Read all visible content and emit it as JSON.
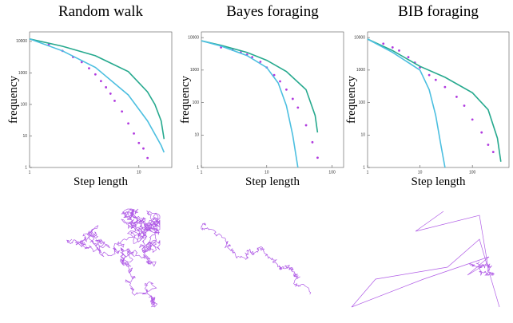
{
  "chart_data": [
    {
      "type": "loglog",
      "title": "Random walk",
      "xlabel": "Step length",
      "ylabel": "frequency",
      "xlim": [
        1,
        20
      ],
      "ylim": [
        1,
        20000
      ],
      "xticks": [
        1,
        10
      ],
      "yticks": [
        1,
        10,
        100,
        1000,
        10000
      ],
      "series": [
        {
          "mode": "points",
          "color": "#b03adf",
          "x": [
            1.5,
            2,
            2.5,
            3,
            3.5,
            4,
            4.5,
            5,
            5.5,
            6,
            7,
            8,
            9,
            10,
            11,
            12
          ],
          "values": [
            8000,
            5000,
            3200,
            2200,
            1400,
            900,
            550,
            350,
            220,
            130,
            60,
            25,
            12,
            6,
            4,
            2
          ]
        },
        {
          "mode": "line",
          "color": "#26a98e",
          "x": [
            1,
            2,
            4,
            8,
            12,
            14,
            16,
            17
          ],
          "values": [
            12000,
            7000,
            3500,
            1100,
            250,
            100,
            30,
            8
          ]
        },
        {
          "mode": "line",
          "color": "#4cbfe0",
          "x": [
            1,
            2,
            4,
            8,
            12,
            16,
            17
          ],
          "values": [
            12000,
            5000,
            1500,
            200,
            30,
            5,
            3
          ]
        }
      ]
    },
    {
      "type": "loglog",
      "title": "Bayes foraging",
      "xlabel": "Step length",
      "ylabel": "frequency",
      "xlim": [
        1,
        150
      ],
      "ylim": [
        1,
        15000
      ],
      "xticks": [
        1,
        10,
        100
      ],
      "yticks": [
        1,
        10,
        100,
        1000,
        10000
      ],
      "series": [
        {
          "mode": "points",
          "color": "#b03adf",
          "x": [
            2,
            3,
            4,
            5,
            6,
            8,
            10,
            13,
            16,
            20,
            25,
            30,
            40,
            50,
            60
          ],
          "values": [
            5000,
            4200,
            3500,
            3000,
            2500,
            1800,
            1200,
            700,
            450,
            250,
            130,
            70,
            20,
            6,
            2
          ]
        },
        {
          "mode": "line",
          "color": "#26a98e",
          "x": [
            1,
            2,
            5,
            10,
            20,
            40,
            55,
            60
          ],
          "values": [
            8000,
            5800,
            3500,
            2000,
            900,
            250,
            40,
            12
          ]
        },
        {
          "mode": "line",
          "color": "#4cbfe0",
          "x": [
            1,
            2,
            5,
            10,
            15,
            20,
            25,
            30
          ],
          "values": [
            8000,
            5500,
            2800,
            1200,
            400,
            80,
            10,
            1
          ]
        }
      ]
    },
    {
      "type": "loglog",
      "title": "BIB foraging",
      "xlabel": "Step length",
      "ylabel": "frequency",
      "xlim": [
        1,
        500
      ],
      "ylim": [
        1,
        15000
      ],
      "xticks": [
        1,
        10,
        100
      ],
      "yticks": [
        1,
        10,
        100,
        1000,
        10000
      ],
      "series": [
        {
          "mode": "points",
          "color": "#b03adf",
          "x": [
            2,
            3,
            4,
            6,
            8,
            10,
            15,
            20,
            30,
            50,
            70,
            100,
            150,
            200,
            250
          ],
          "values": [
            6500,
            5000,
            4000,
            2500,
            1700,
            1200,
            700,
            500,
            300,
            150,
            80,
            30,
            12,
            5,
            3
          ]
        },
        {
          "mode": "line",
          "color": "#26a98e",
          "x": [
            1,
            3,
            10,
            30,
            100,
            200,
            300,
            350
          ],
          "values": [
            9000,
            4000,
            1300,
            600,
            200,
            60,
            8,
            1.5
          ]
        },
        {
          "mode": "line",
          "color": "#4cbfe0",
          "x": [
            1,
            3,
            10,
            15,
            20,
            25,
            30
          ],
          "values": [
            9000,
            3500,
            1000,
            250,
            40,
            5,
            1
          ]
        }
      ]
    }
  ]
}
